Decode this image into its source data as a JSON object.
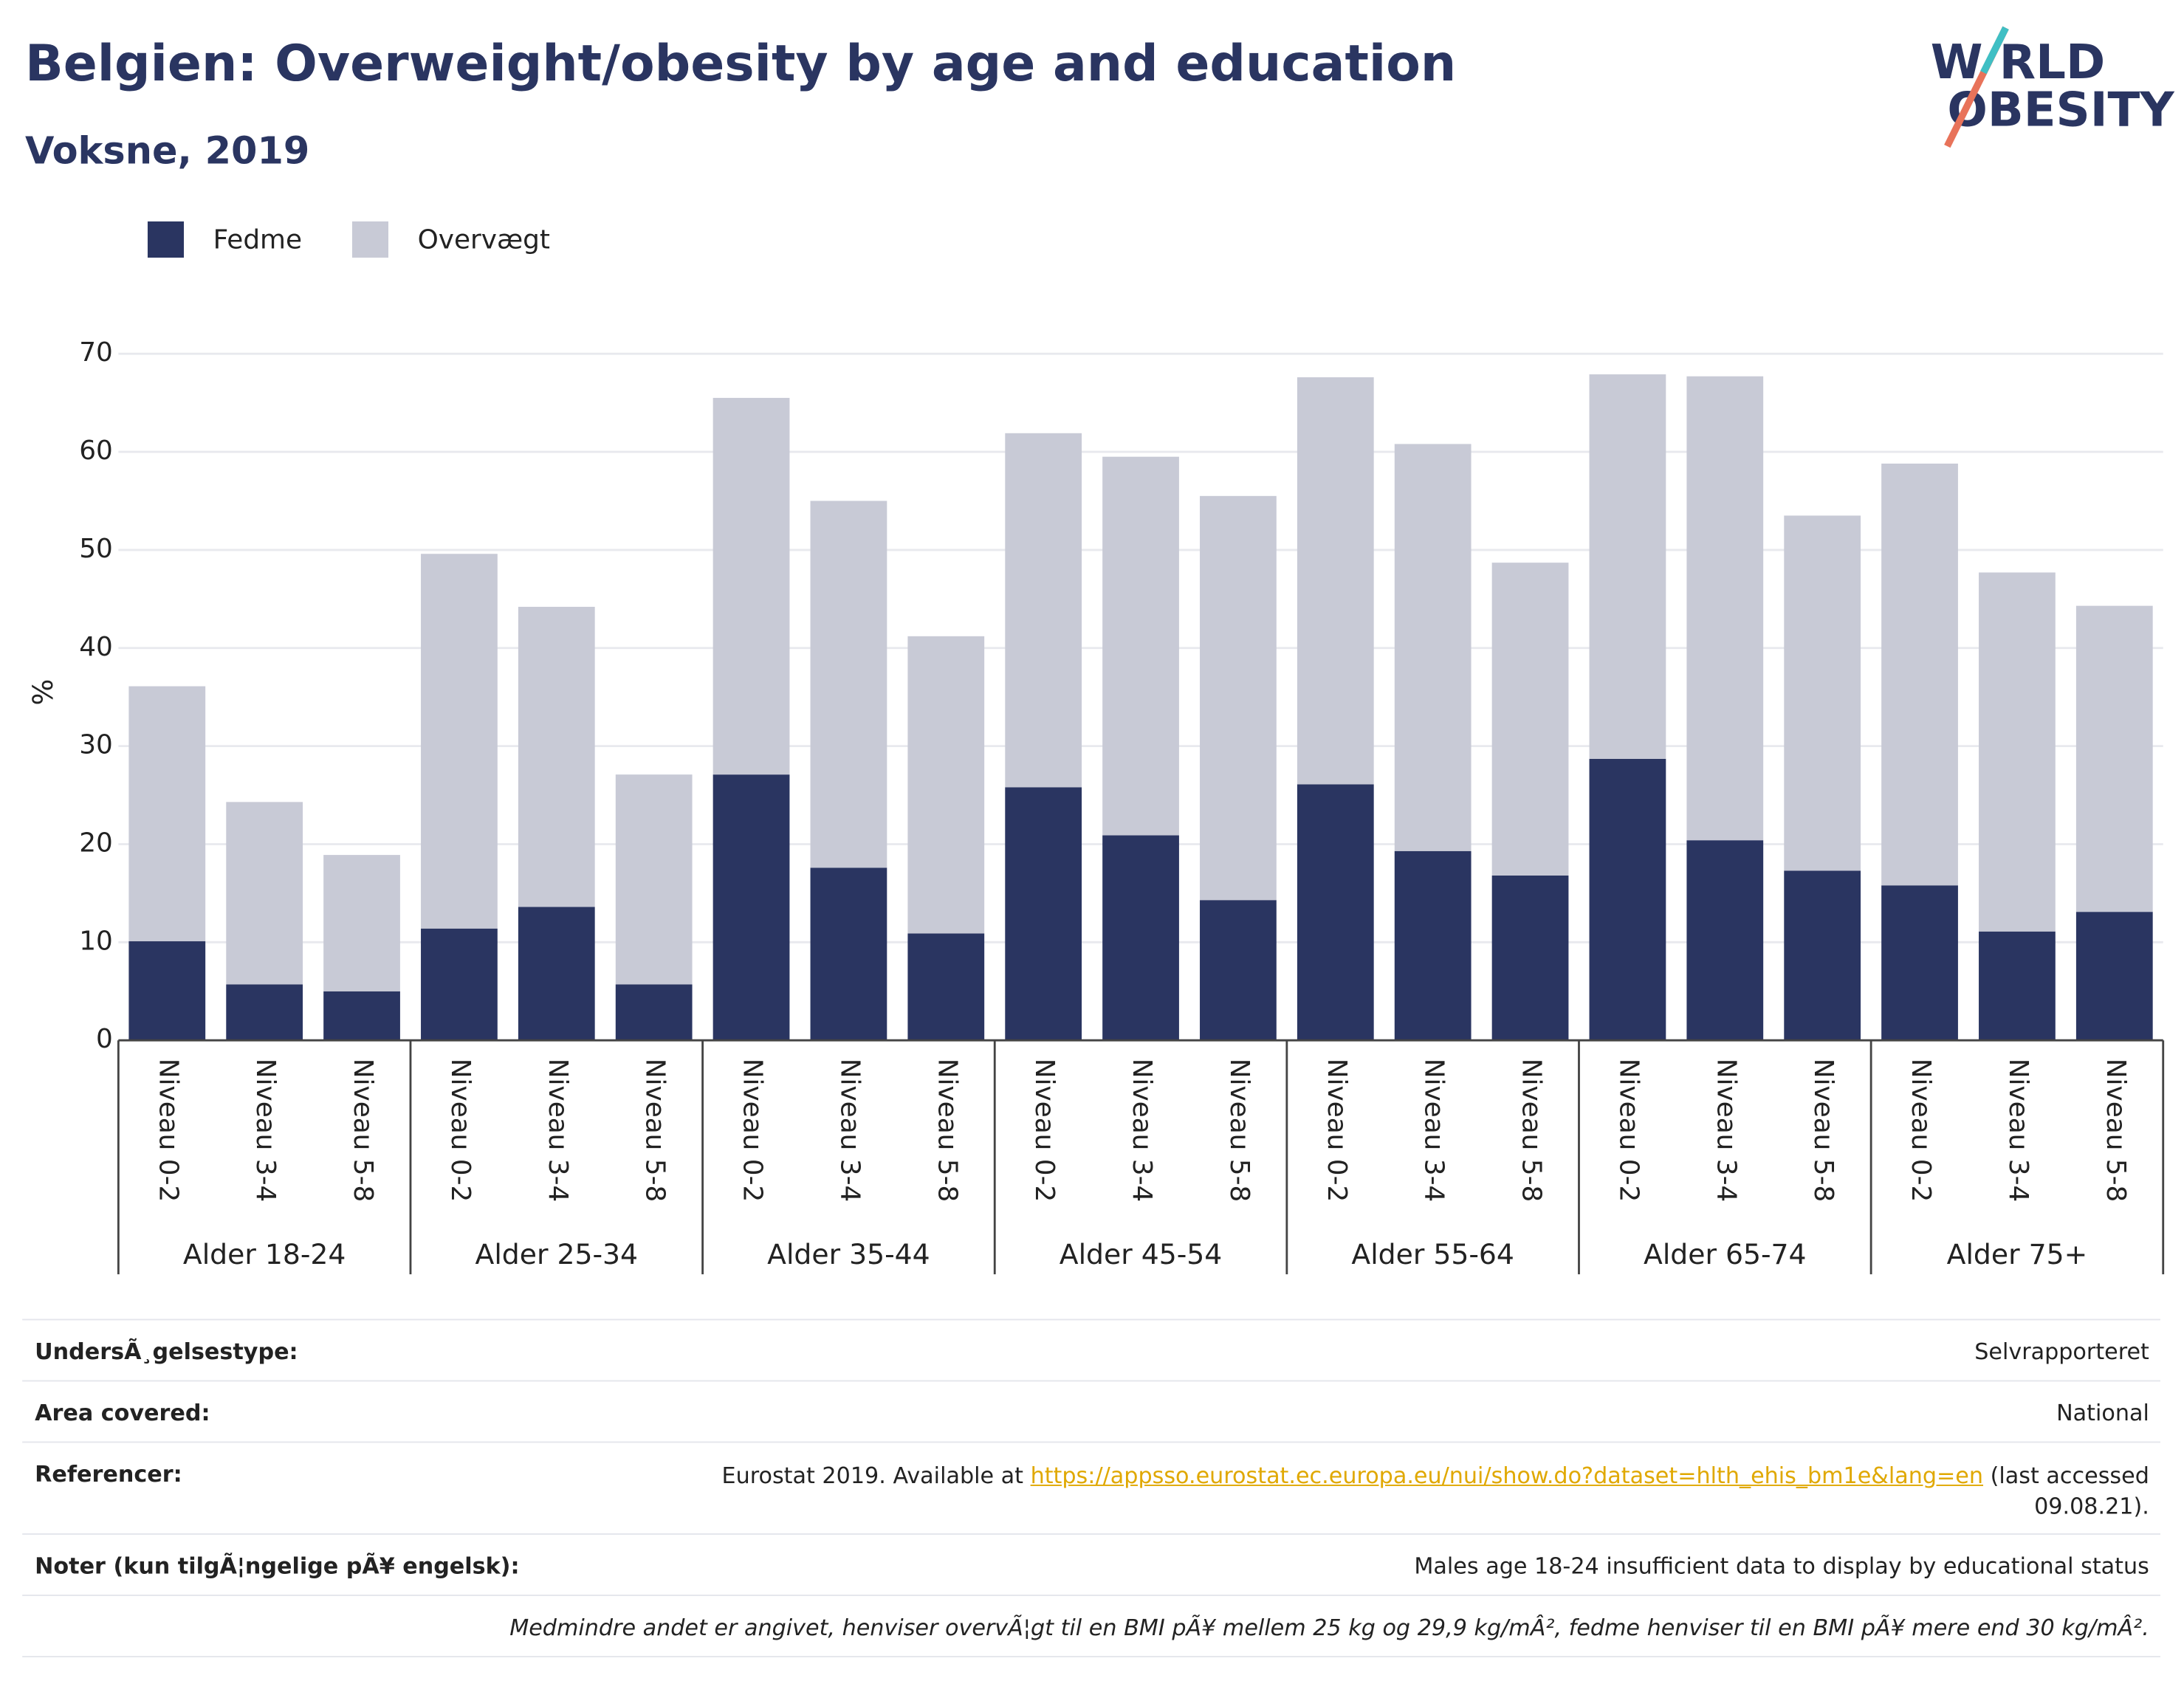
{
  "chart_data": {
    "type": "stacked_bar",
    "title": "Belgien: Overweight/obesity by age and education",
    "subtitle": "Voksne, 2019",
    "y_label": "%",
    "groups": [
      {
        "name": "Alder 18-24",
        "categories": [
          "Niveau 0-2",
          "Niveau 3-4",
          "Niveau 5-8"
        ]
      },
      {
        "name": "Alder 25-34",
        "categories": [
          "Niveau 0-2",
          "Niveau 3-4",
          "Niveau 5-8"
        ]
      },
      {
        "name": "Alder 35-44",
        "categories": [
          "Niveau 0-2",
          "Niveau 3-4",
          "Niveau 5-8"
        ]
      },
      {
        "name": "Alder 45-54",
        "categories": [
          "Niveau 0-2",
          "Niveau 3-4",
          "Niveau 5-8"
        ]
      },
      {
        "name": "Alder 55-64",
        "categories": [
          "Niveau 0-2",
          "Niveau 3-4",
          "Niveau 5-8"
        ]
      },
      {
        "name": "Alder 65-74",
        "categories": [
          "Niveau 0-2",
          "Niveau 3-4",
          "Niveau 5-8"
        ]
      },
      {
        "name": "Alder 75+",
        "categories": [
          "Niveau 0-2",
          "Niveau 3-4",
          "Niveau 5-8"
        ]
      }
    ],
    "series": [
      {
        "name": "Fedme",
        "color": "#2a3561",
        "values": [
          10.1,
          5.7,
          5.0,
          11.4,
          13.6,
          5.7,
          27.1,
          17.6,
          10.9,
          25.8,
          20.9,
          14.3,
          26.1,
          19.3,
          16.8,
          28.7,
          20.4,
          17.3,
          15.8,
          11.1,
          13.1
        ]
      },
      {
        "name": "Overvægt",
        "color": "#c8cad6",
        "values": [
          26.0,
          18.6,
          13.9,
          38.2,
          30.6,
          21.4,
          38.4,
          37.4,
          30.3,
          36.1,
          38.6,
          41.2,
          41.5,
          41.5,
          31.9,
          39.2,
          47.3,
          36.2,
          43.0,
          36.6,
          31.2
        ]
      }
    ],
    "ylim": [
      0,
      70
    ],
    "yticks": [
      0,
      10,
      20,
      30,
      40,
      50,
      60,
      70
    ],
    "grid": true,
    "legend": "top-left"
  },
  "logo": {
    "line1": "W RLD",
    "line2": "OBESITY"
  },
  "info": {
    "survey": {
      "label": "UndersÃ¸gelsestype:",
      "value": "Selvrapporteret"
    },
    "area": {
      "label": "Area covered:",
      "value": "National"
    },
    "reference": {
      "label": "Referencer:",
      "before": "Eurostat 2019. Available at ",
      "link": "https://appsso.eurostat.ec.europa.eu/nui/show.do?dataset=hlth_ehis_bm1e&lang=en",
      "after": " (last accessed 09.08.21)."
    },
    "notes": {
      "label": "Noter (kun tilgÃ¦ngelige pÃ¥ engelsk):",
      "value": "Males age 18-24 insufficient data to display by educational status"
    },
    "footnote": "Medmindre andet er angivet, henviser overvÃ¦gt til en BMI pÃ¥ mellem 25 kg og 29,9 kg/mÂ², fedme henviser til en BMI pÃ¥ mere end 30 kg/mÂ²."
  }
}
